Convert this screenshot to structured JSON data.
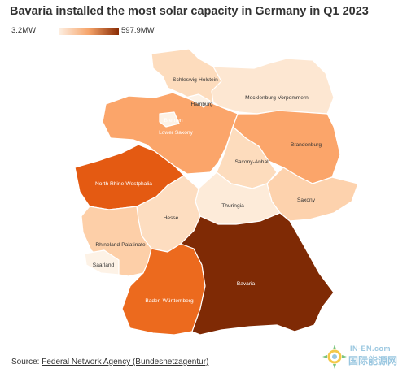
{
  "title": "Bavaria installed the most solar capacity in Germany in Q1 2023",
  "legend": {
    "min_label": "3.2MW",
    "max_label": "597.9MW",
    "min_color": "#fdf0e4",
    "max_color": "#8a2c04"
  },
  "regions": [
    {
      "key": "schleswig",
      "label": "Schleswig-Holstein",
      "color": "#fddcbd"
    },
    {
      "key": "hamburg",
      "label": "Hamburg",
      "color": "#fdf2e6"
    },
    {
      "key": "mecklenburg",
      "label": "Mecklenburg-Vorpommern",
      "color": "#fde7d2"
    },
    {
      "key": "bremen",
      "label": "Bremen",
      "color": "#fdf2e6"
    },
    {
      "key": "lowersaxony",
      "label": "Lower Saxony",
      "color": "#fba56a"
    },
    {
      "key": "brandenburg",
      "label": "Brandenburg",
      "color": "#fba56a"
    },
    {
      "key": "nrw",
      "label": "North Rhine-Westphalia",
      "color": "#e45a12"
    },
    {
      "key": "saxonyanhalt",
      "label": "Saxony-Anhalt",
      "color": "#fddcbd"
    },
    {
      "key": "saxony",
      "label": "Saxony",
      "color": "#fdd2ad"
    },
    {
      "key": "thuringia",
      "label": "Thuringia",
      "color": "#fdebd9"
    },
    {
      "key": "hesse",
      "label": "Hesse",
      "color": "#fdddc0"
    },
    {
      "key": "rhinelandpalatinate",
      "label": "Rhineland-Palatinate",
      "color": "#fdcfa8"
    },
    {
      "key": "saarland",
      "label": "Saarland",
      "color": "#fdf2e6"
    },
    {
      "key": "badenwurttemberg",
      "label": "Baden-Württemberg",
      "color": "#ec6a1e"
    },
    {
      "key": "bavaria",
      "label": "Bavaria",
      "color": "#7f2a05"
    }
  ],
  "source": {
    "prefix": "Source: ",
    "link_text": "Federal Network Agency (Bundesnetzagentur)"
  },
  "watermark": {
    "top": "IN-EN.com",
    "bottom": "国际能源网"
  }
}
